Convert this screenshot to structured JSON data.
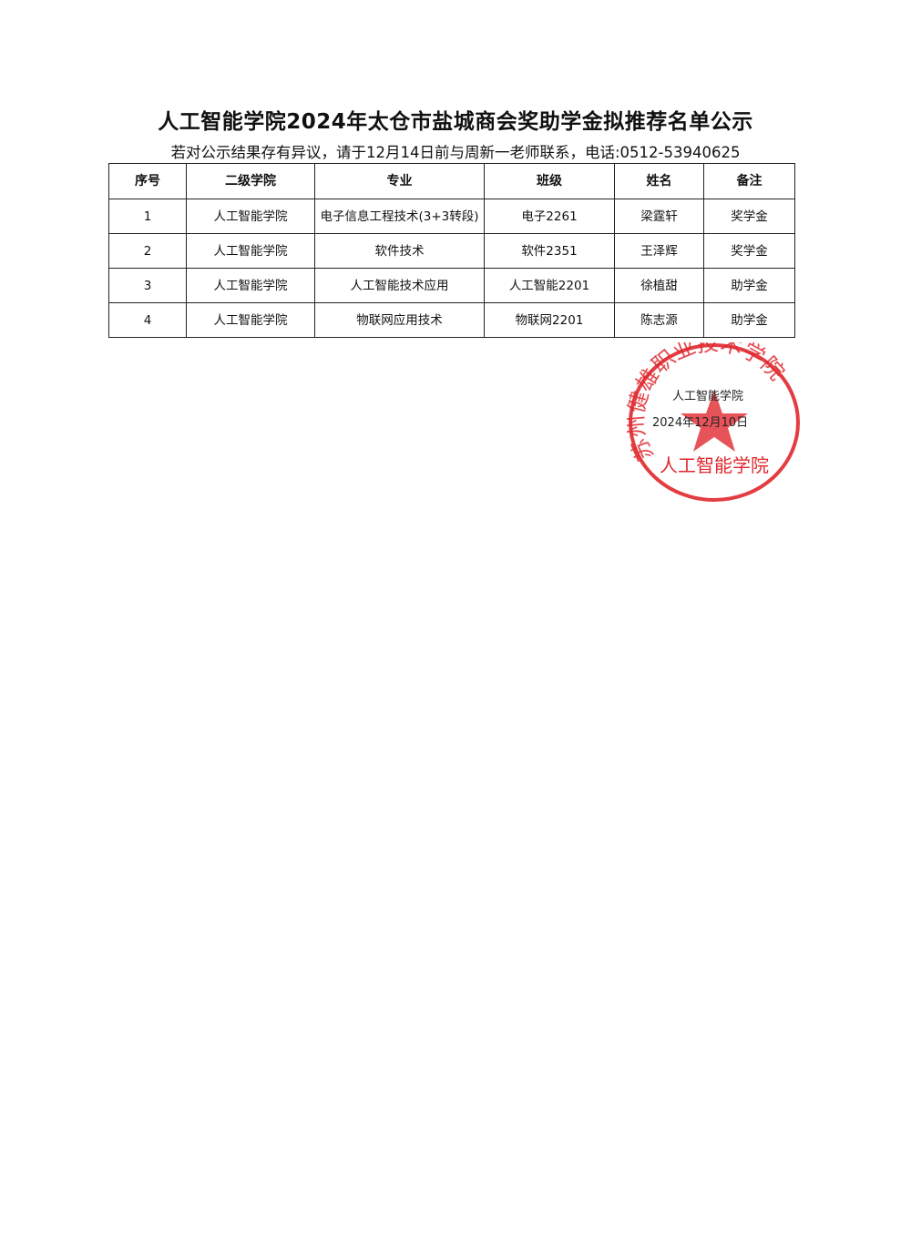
{
  "title": "人工智能学院2024年太仓市盐城商会奖助学金拟推荐名单公示",
  "subtitle": "若对公示结果存有异议，请于12月14日前与周新一老师联系，电话:0512-53940625",
  "table": {
    "headers": [
      "序号",
      "二级学院",
      "专业",
      "班级",
      "姓名",
      "备注"
    ],
    "rows": [
      [
        "1",
        "人工智能学院",
        "电子信息工程技术(3+3转段)",
        "电子2261",
        "梁霆轩",
        "奖学金"
      ],
      [
        "2",
        "人工智能学院",
        "软件技术",
        "软件2351",
        "王泽辉",
        "奖学金"
      ],
      [
        "3",
        "人工智能学院",
        "人工智能技术应用",
        "人工智能2201",
        "徐植甜",
        "助学金"
      ],
      [
        "4",
        "人工智能学院",
        "物联网应用技术",
        "物联网2201",
        "陈志源",
        "助学金"
      ]
    ]
  },
  "signature": {
    "org": "人工智能学院",
    "date": "2024年12月10日"
  },
  "seal": {
    "ring_text": "苏州健雄职业技术学院",
    "bottom_text": "人工智能学院",
    "color": "#e0282e"
  }
}
